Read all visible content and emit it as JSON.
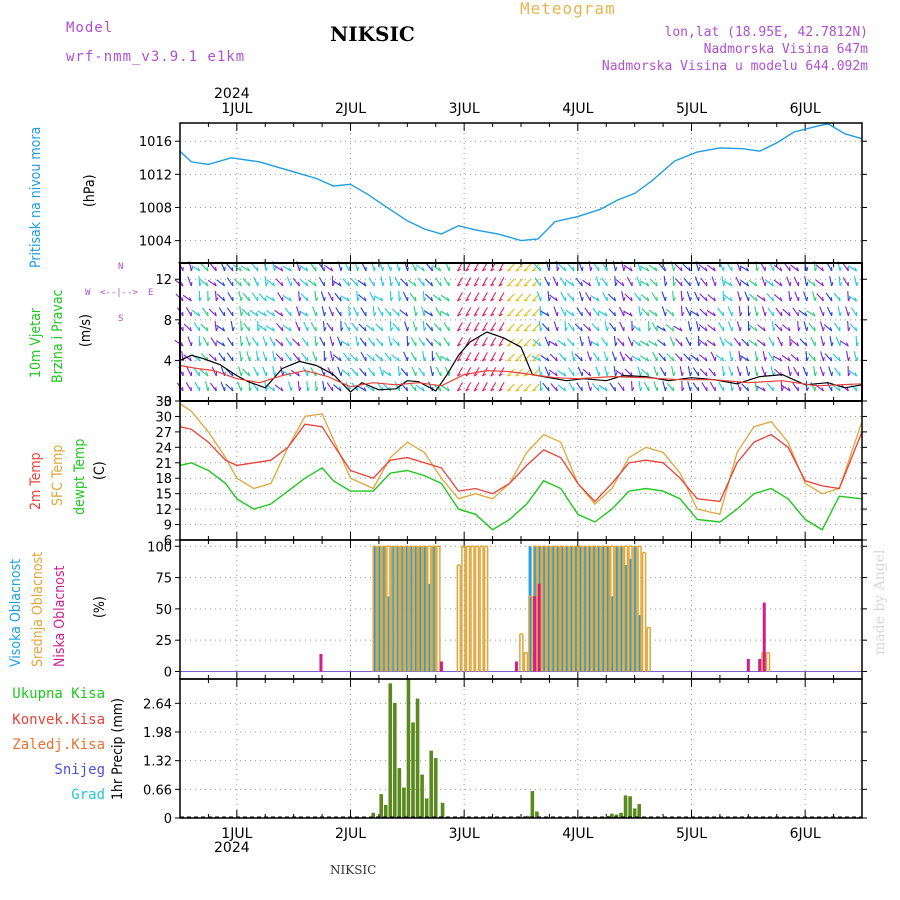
{
  "header": {
    "model_label": "Model",
    "model_name": "wrf-nmm_v3.9.1 e1km",
    "station": "NIKSIC",
    "meteogram": "Meteogram",
    "lonlat": "lon,lat (18.95E, 42.7812N)",
    "altitude": "Nadmorska Visina 647m",
    "model_altitude": "Nadmorska Visina u modelu 644.092m",
    "footer_station": "NIKSIC",
    "watermark": "made by Angel"
  },
  "colors": {
    "pressure": "#1e9ee0",
    "t2m": "#e8413a",
    "sfc": "#e0a63a",
    "dew": "#1ec81e",
    "high_cloud": "#1ea0e8",
    "mid_cloud": "#e0a63a",
    "low_cloud": "#d01e8c",
    "precip": "#5a8a1e",
    "purple": "#b050d0",
    "cyan": "#20c8d8",
    "blue": "#5050e0"
  },
  "x_axis": {
    "year": "2024",
    "days": [
      "1JUL",
      "2JUL",
      "3JUL",
      "4JUL",
      "5JUL",
      "6JUL"
    ],
    "start_day": 0.5,
    "end_day": 6.5
  },
  "panel_labels": {
    "pressure": [
      "Pritisak na nivou mora",
      "(hPa)"
    ],
    "wind": [
      "10m Vjetar",
      "Brzina i Pravac",
      "(m/s)"
    ],
    "wind_compass": [
      "W",
      "<--|-->",
      "E",
      "S",
      "N"
    ],
    "temp": [
      "2m Temp",
      "SFC Temp",
      "dewpt Temp",
      "(C)"
    ],
    "cloud": [
      "Visoka Oblacnost",
      "Srednja Oblacnost",
      "Niska Oblacnost",
      "(%)"
    ],
    "precip_legend": [
      "Ukupna Kisa",
      "Konvek.Kisa",
      "Zaledj.Kisa",
      "Snijeg",
      "Grad"
    ],
    "precip_unit": "1hr Precip (mm)"
  },
  "chart_data": [
    {
      "type": "line",
      "ylabel": "Pritisak na nivou mora (hPa)",
      "ylim": [
        1001.3,
        1018.2
      ],
      "yticks": [
        1004,
        1008,
        1012,
        1016
      ],
      "series": [
        {
          "name": "Pritisak na nivou mora",
          "x": [
            0.5,
            0.6,
            0.75,
            0.95,
            1.2,
            1.45,
            1.7,
            1.85,
            2.0,
            2.15,
            2.3,
            2.5,
            2.65,
            2.8,
            2.95,
            3.1,
            3.3,
            3.5,
            3.65,
            3.8,
            4.0,
            4.2,
            4.35,
            4.5,
            4.65,
            4.85,
            5.05,
            5.25,
            5.45,
            5.6,
            5.75,
            5.9,
            6.1,
            6.2,
            6.35,
            6.5
          ],
          "y": [
            1014.8,
            1013.5,
            1013.2,
            1014.0,
            1013.5,
            1012.5,
            1011.5,
            1010.6,
            1010.8,
            1009.6,
            1008.2,
            1006.4,
            1005.4,
            1004.8,
            1005.8,
            1005.3,
            1004.8,
            1004.0,
            1004.2,
            1006.3,
            1006.9,
            1007.8,
            1008.9,
            1009.7,
            1011.2,
            1013.6,
            1014.7,
            1015.2,
            1015.1,
            1014.8,
            1015.8,
            1017.1,
            1017.8,
            1018.1,
            1016.9,
            1016.3
          ]
        }
      ]
    },
    {
      "type": "line",
      "ylabel": "10m Vjetar Brzina i Pravac (m/s)",
      "ylim": [
        0,
        13.6
      ],
      "yticks": [
        0,
        4,
        8,
        12
      ],
      "series": [
        {
          "name": "wind_speed",
          "x": [
            0.5,
            0.6,
            0.7,
            0.85,
            1.0,
            1.1,
            1.25,
            1.4,
            1.55,
            1.7,
            1.85,
            2.0,
            2.1,
            2.25,
            2.4,
            2.5,
            2.6,
            2.75,
            2.85,
            2.95,
            3.05,
            3.2,
            3.35,
            3.5,
            3.6,
            3.75,
            3.9,
            4.05,
            4.25,
            4.4,
            4.6,
            4.8,
            5.0,
            5.2,
            5.4,
            5.6,
            5.8,
            6.0,
            6.2,
            6.35,
            6.5
          ],
          "y": [
            4.0,
            4.5,
            4.2,
            3.6,
            2.5,
            1.9,
            1.3,
            3.2,
            3.9,
            3.5,
            2.6,
            0.9,
            1.8,
            1.1,
            1.2,
            2.0,
            1.9,
            1.0,
            2.6,
            4.5,
            5.8,
            6.8,
            6.2,
            5.3,
            2.6,
            2.3,
            2.0,
            2.2,
            2.0,
            2.5,
            2.4,
            2.0,
            2.3,
            2.1,
            1.7,
            2.4,
            2.6,
            1.6,
            1.8,
            1.3,
            1.6
          ]
        },
        {
          "name": "wind_gust",
          "x": [
            0.5,
            0.65,
            0.8,
            1.0,
            1.2,
            1.4,
            1.6,
            1.8,
            2.0,
            2.2,
            2.4,
            2.6,
            2.8,
            3.0,
            3.2,
            3.4,
            3.6,
            3.8,
            4.0,
            4.3,
            4.6,
            4.9,
            5.2,
            5.5,
            5.8,
            6.1,
            6.5
          ],
          "y": [
            3.5,
            3.2,
            3.0,
            2.2,
            1.8,
            2.5,
            3.0,
            2.4,
            1.4,
            1.8,
            1.6,
            1.8,
            1.5,
            2.6,
            3.0,
            2.9,
            2.6,
            2.3,
            2.2,
            2.4,
            2.3,
            2.1,
            2.1,
            1.8,
            2.0,
            1.5,
            1.7
          ]
        }
      ]
    },
    {
      "type": "line",
      "ylabel": "2m Temp SFC Temp dewpt Temp (C)",
      "ylim": [
        6,
        33
      ],
      "yticks": [
        6,
        9,
        12,
        15,
        18,
        21,
        24,
        27,
        30,
        33
      ],
      "series": [
        {
          "name": "2m Temp",
          "x": [
            0.5,
            0.6,
            0.75,
            0.9,
            1.0,
            1.15,
            1.3,
            1.45,
            1.6,
            1.75,
            1.85,
            2.0,
            2.2,
            2.35,
            2.5,
            2.65,
            2.8,
            2.95,
            3.1,
            3.25,
            3.4,
            3.55,
            3.7,
            3.85,
            4.0,
            4.15,
            4.3,
            4.45,
            4.6,
            4.75,
            4.9,
            5.05,
            5.25,
            5.4,
            5.55,
            5.7,
            5.85,
            6.0,
            6.15,
            6.3,
            6.5
          ],
          "y": [
            28,
            27.5,
            25,
            21.5,
            20.5,
            21,
            21.5,
            24,
            28.5,
            28,
            24.5,
            19.5,
            18,
            21.5,
            22,
            21,
            20,
            15.5,
            16,
            15,
            17,
            20.5,
            23.5,
            22,
            17,
            13.5,
            17,
            21,
            21.5,
            21,
            18,
            14,
            13.5,
            21,
            25,
            26.5,
            24,
            17.5,
            16.5,
            16,
            27
          ]
        },
        {
          "name": "SFC Temp",
          "x": [
            0.5,
            0.6,
            0.75,
            0.9,
            1.0,
            1.15,
            1.3,
            1.45,
            1.6,
            1.75,
            1.85,
            2.0,
            2.2,
            2.35,
            2.5,
            2.65,
            2.8,
            2.95,
            3.1,
            3.25,
            3.4,
            3.55,
            3.7,
            3.85,
            4.0,
            4.15,
            4.3,
            4.45,
            4.6,
            4.75,
            4.9,
            5.05,
            5.25,
            5.4,
            5.55,
            5.7,
            5.85,
            6.0,
            6.15,
            6.3,
            6.5
          ],
          "y": [
            32.5,
            31,
            27,
            22,
            18,
            16,
            17,
            24,
            30,
            30.5,
            25.5,
            18,
            16,
            22,
            25,
            23,
            18,
            14,
            15,
            14,
            17,
            23,
            26.5,
            25,
            17,
            13,
            16,
            22,
            24,
            23,
            19,
            12,
            11,
            23,
            28,
            29,
            25,
            17,
            15,
            16,
            29
          ]
        },
        {
          "name": "dewpt Temp",
          "x": [
            0.5,
            0.6,
            0.75,
            0.9,
            1.0,
            1.15,
            1.3,
            1.45,
            1.6,
            1.75,
            1.85,
            2.0,
            2.2,
            2.35,
            2.5,
            2.65,
            2.8,
            2.95,
            3.1,
            3.25,
            3.4,
            3.55,
            3.7,
            3.85,
            4.0,
            4.15,
            4.3,
            4.45,
            4.6,
            4.75,
            4.9,
            5.05,
            5.25,
            5.4,
            5.55,
            5.7,
            5.85,
            6.0,
            6.15,
            6.3,
            6.5
          ],
          "y": [
            20.5,
            21,
            19.5,
            17,
            14,
            12,
            13,
            15.5,
            18,
            20,
            17.5,
            15.5,
            15.5,
            19,
            19.5,
            18.5,
            17,
            12,
            11,
            8,
            10,
            13,
            17.5,
            16,
            11,
            9.5,
            12,
            15.5,
            16,
            15.5,
            14,
            10,
            9.5,
            12,
            15,
            16,
            14,
            10,
            8,
            14.5,
            14
          ]
        }
      ]
    },
    {
      "type": "bar",
      "ylabel": "Visoka Oblacnost Srednja Oblacnost Niska Oblacnost (%)",
      "ylim": [
        -6,
        105
      ],
      "yticks": [
        0,
        25,
        50,
        75,
        100
      ],
      "series": [
        {
          "name": "Visoka Oblacnost",
          "x": [
            2.22,
            2.26,
            2.3,
            2.34,
            2.38,
            2.42,
            2.46,
            2.5,
            2.54,
            2.58,
            2.62,
            2.66,
            2.7,
            2.74,
            3.58,
            3.62,
            3.66,
            3.7,
            3.74,
            3.78,
            3.82,
            3.86,
            3.9,
            3.94,
            3.98,
            4.02,
            4.06,
            4.1,
            4.14,
            4.18,
            4.22,
            4.26,
            4.3,
            4.34,
            4.38,
            4.42,
            4.46,
            4.5,
            4.54
          ],
          "y": [
            100,
            100,
            100,
            60,
            100,
            100,
            100,
            100,
            100,
            100,
            100,
            100,
            70,
            100,
            100,
            100,
            100,
            100,
            100,
            100,
            100,
            100,
            100,
            100,
            100,
            100,
            100,
            100,
            100,
            100,
            100,
            100,
            60,
            100,
            100,
            85,
            90,
            100,
            45
          ]
        },
        {
          "name": "Srednja Oblacnost",
          "x": [
            2.2,
            2.24,
            2.28,
            2.32,
            2.36,
            2.4,
            2.44,
            2.48,
            2.52,
            2.56,
            2.6,
            2.64,
            2.68,
            2.72,
            2.76,
            2.94,
            2.98,
            3.02,
            3.06,
            3.1,
            3.14,
            3.18,
            3.49,
            3.53,
            3.57,
            3.61,
            3.65,
            3.69,
            3.73,
            3.77,
            3.81,
            3.85,
            3.89,
            3.93,
            3.97,
            4.01,
            4.05,
            4.09,
            4.13,
            4.17,
            4.21,
            4.25,
            4.29,
            4.33,
            4.37,
            4.41,
            4.45,
            4.49,
            4.53,
            4.57,
            4.61,
            5.62,
            5.66
          ],
          "y": [
            100,
            100,
            100,
            100,
            100,
            100,
            100,
            100,
            100,
            100,
            100,
            100,
            100,
            100,
            100,
            85,
            100,
            100,
            100,
            100,
            100,
            100,
            30,
            15,
            60,
            100,
            100,
            100,
            100,
            100,
            100,
            100,
            100,
            100,
            100,
            100,
            100,
            100,
            100,
            100,
            100,
            100,
            100,
            100,
            100,
            100,
            100,
            100,
            100,
            95,
            35,
            15,
            15
          ]
        },
        {
          "name": "Niska Oblacnost",
          "x": [
            1.74,
            2.8,
            3.46,
            3.62,
            3.66,
            5.5,
            5.6,
            5.64
          ],
          "y": [
            14,
            8,
            8,
            60,
            70,
            10,
            10,
            55
          ]
        }
      ]
    },
    {
      "type": "bar",
      "ylabel": "1hr Precip (mm)",
      "ylim": [
        0,
        3.2
      ],
      "yticks": [
        0,
        0.66,
        1.32,
        1.98,
        2.64
      ],
      "series": [
        {
          "name": "Ukupna Kisa",
          "x": [
            2.2,
            2.27,
            2.31,
            2.35,
            2.39,
            2.43,
            2.47,
            2.51,
            2.55,
            2.59,
            2.63,
            2.67,
            2.71,
            2.75,
            2.81,
            3.56,
            3.6,
            3.64,
            4.26,
            4.3,
            4.34,
            4.38,
            4.42,
            4.46,
            4.5,
            4.54
          ],
          "y": [
            0.12,
            0.55,
            0.3,
            3.1,
            2.65,
            1.15,
            0.7,
            3.2,
            2.2,
            2.75,
            1.0,
            0.45,
            1.55,
            1.38,
            0.35,
            0.05,
            0.62,
            0.15,
            0.05,
            0.1,
            0.08,
            0.12,
            0.52,
            0.5,
            0.22,
            0.32
          ]
        }
      ]
    }
  ]
}
